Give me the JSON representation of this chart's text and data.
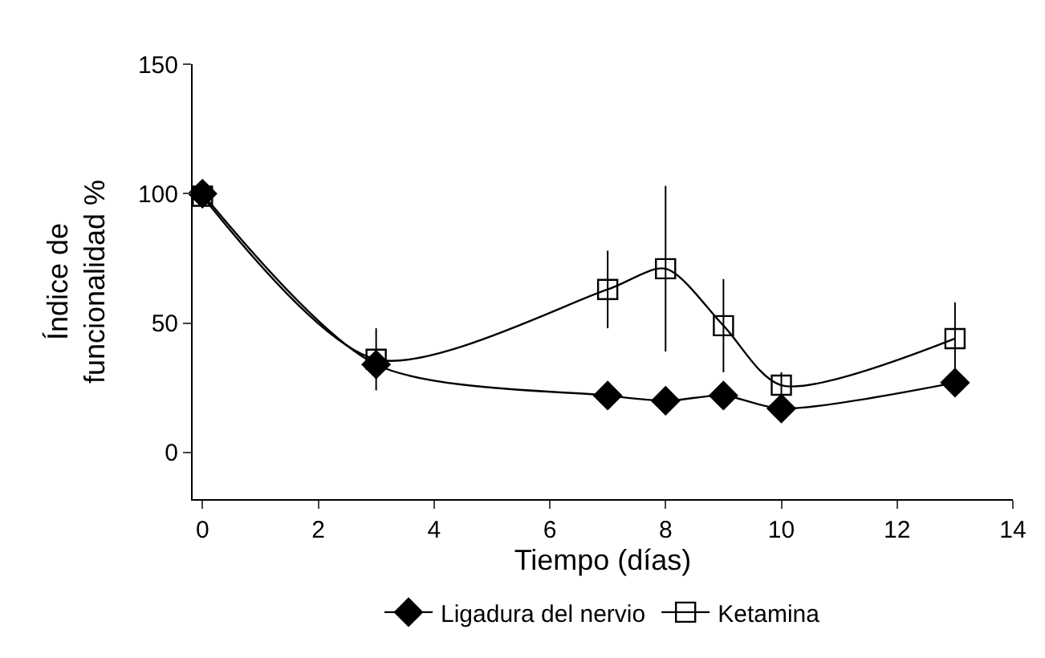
{
  "chart_data": {
    "type": "line",
    "xlabel": "Tiempo (días)",
    "ylabel": "Índice de\nfuncionalidad %",
    "xlim": [
      -0.17,
      14
    ],
    "xticks": [
      0,
      2,
      4,
      6,
      8,
      10,
      12,
      14
    ],
    "ylim": [
      -18,
      150
    ],
    "yticks": [
      0,
      50,
      100,
      150
    ],
    "legend": "bottom",
    "series": [
      {
        "name": "Ligadura del nervio",
        "color": "#000000",
        "marker": "diamond",
        "x": [
          0,
          3,
          7,
          8,
          9,
          10,
          13
        ],
        "values": [
          100,
          34,
          22,
          20,
          22,
          17,
          27
        ]
      },
      {
        "name": "Ketamina",
        "color": "#000000",
        "marker": "square",
        "x": [
          0,
          3,
          7,
          8,
          9,
          10,
          13
        ],
        "values": [
          99,
          36,
          63,
          71,
          49,
          26,
          44
        ],
        "errors": [
          null,
          12,
          15,
          32,
          18,
          5,
          14
        ]
      }
    ]
  }
}
